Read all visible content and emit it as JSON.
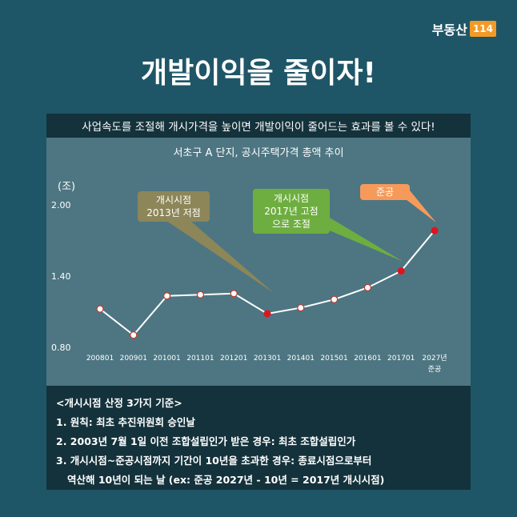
{
  "logo": {
    "text": "부동산",
    "box": "114"
  },
  "title": "개발이익을 줄이자!",
  "subtitle": "사업속도를 조절해 개시가격을 높이면 개발이익이 줄어드는 효과를 볼 수 있다!",
  "chart_data": {
    "type": "line",
    "title": "서초구 A 단지, 공시주택가격 총액 추이",
    "ylabel": "(조)",
    "ylim": [
      0.8,
      2.0
    ],
    "yticks": [
      "2.00",
      "1.40",
      "0.80"
    ],
    "categories": [
      "200801",
      "200901",
      "201001",
      "201101",
      "201201",
      "201301",
      "201401",
      "201501",
      "201601",
      "201701",
      "2027년 준공"
    ],
    "values": [
      1.13,
      0.91,
      1.24,
      1.25,
      1.26,
      1.09,
      1.14,
      1.21,
      1.31,
      1.45,
      1.79
    ],
    "highlight": [
      false,
      false,
      false,
      false,
      false,
      true,
      false,
      false,
      false,
      true,
      true
    ],
    "colors": {
      "line": "#ffffff",
      "marker": "#ffffff",
      "highlight": "#e0141e"
    }
  },
  "callouts": {
    "c1": {
      "line1": "개시시점",
      "line2": "2013년 저점"
    },
    "c2": {
      "line1": "개시시점",
      "line2": "2017년 고점",
      "line3": "으로 조절"
    },
    "c3": {
      "line1": "준공"
    }
  },
  "notes": {
    "heading": "<개시시점 산정 3가지 기준>",
    "item1": "1. 원칙: 최초 추진위원회 승인날",
    "item2": "2. 2003년 7월 1일 이전 조합설립인가 받은 경우: 최초 조합설립인가",
    "item3": "3. 개시시점~준공시점까지 기간이 10년을 초과한 경우: 종료시점으로부터",
    "item3b": "역산해 10년이 되는 날 (ex: 준공 2027년 - 10년 = 2017년 개시시점)"
  }
}
